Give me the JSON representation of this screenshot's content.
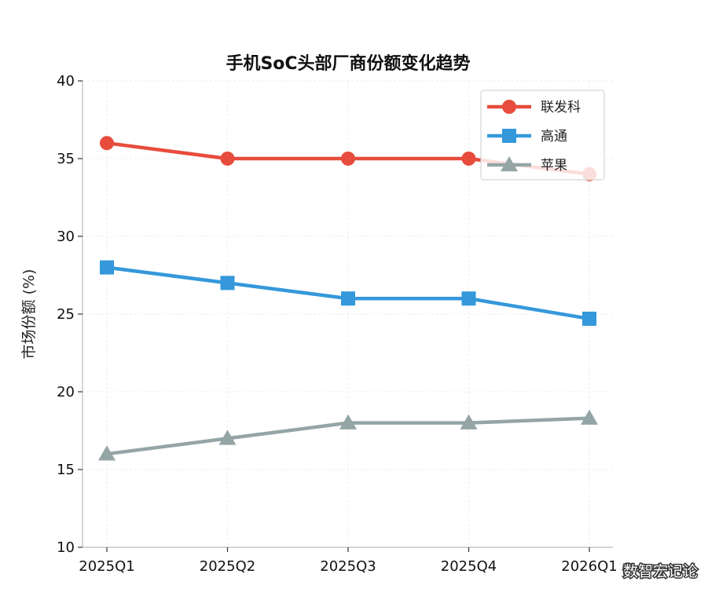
{
  "chart_data": {
    "type": "line",
    "title": "手机SoC头部厂商份额变化趋势",
    "xlabel": "",
    "ylabel": "市场份额 (%)",
    "categories": [
      "2025Q1",
      "2025Q2",
      "2025Q3",
      "2025Q4",
      "2026Q1"
    ],
    "ylim": [
      10,
      40
    ],
    "yticks": [
      10,
      15,
      20,
      25,
      30,
      35,
      40
    ],
    "grid": true,
    "legend_position": "top-right",
    "series": [
      {
        "name": "联发科",
        "values": [
          36,
          35,
          35,
          35,
          34
        ],
        "color": "#e74c3c",
        "marker": "circle"
      },
      {
        "name": "高通",
        "values": [
          28,
          27,
          26,
          26,
          24.7
        ],
        "color": "#3498db",
        "marker": "square"
      },
      {
        "name": "苹果",
        "values": [
          16,
          17,
          18,
          18,
          18.3
        ],
        "color": "#95a5a6",
        "marker": "triangle"
      }
    ]
  },
  "watermark": "数智宏记论"
}
